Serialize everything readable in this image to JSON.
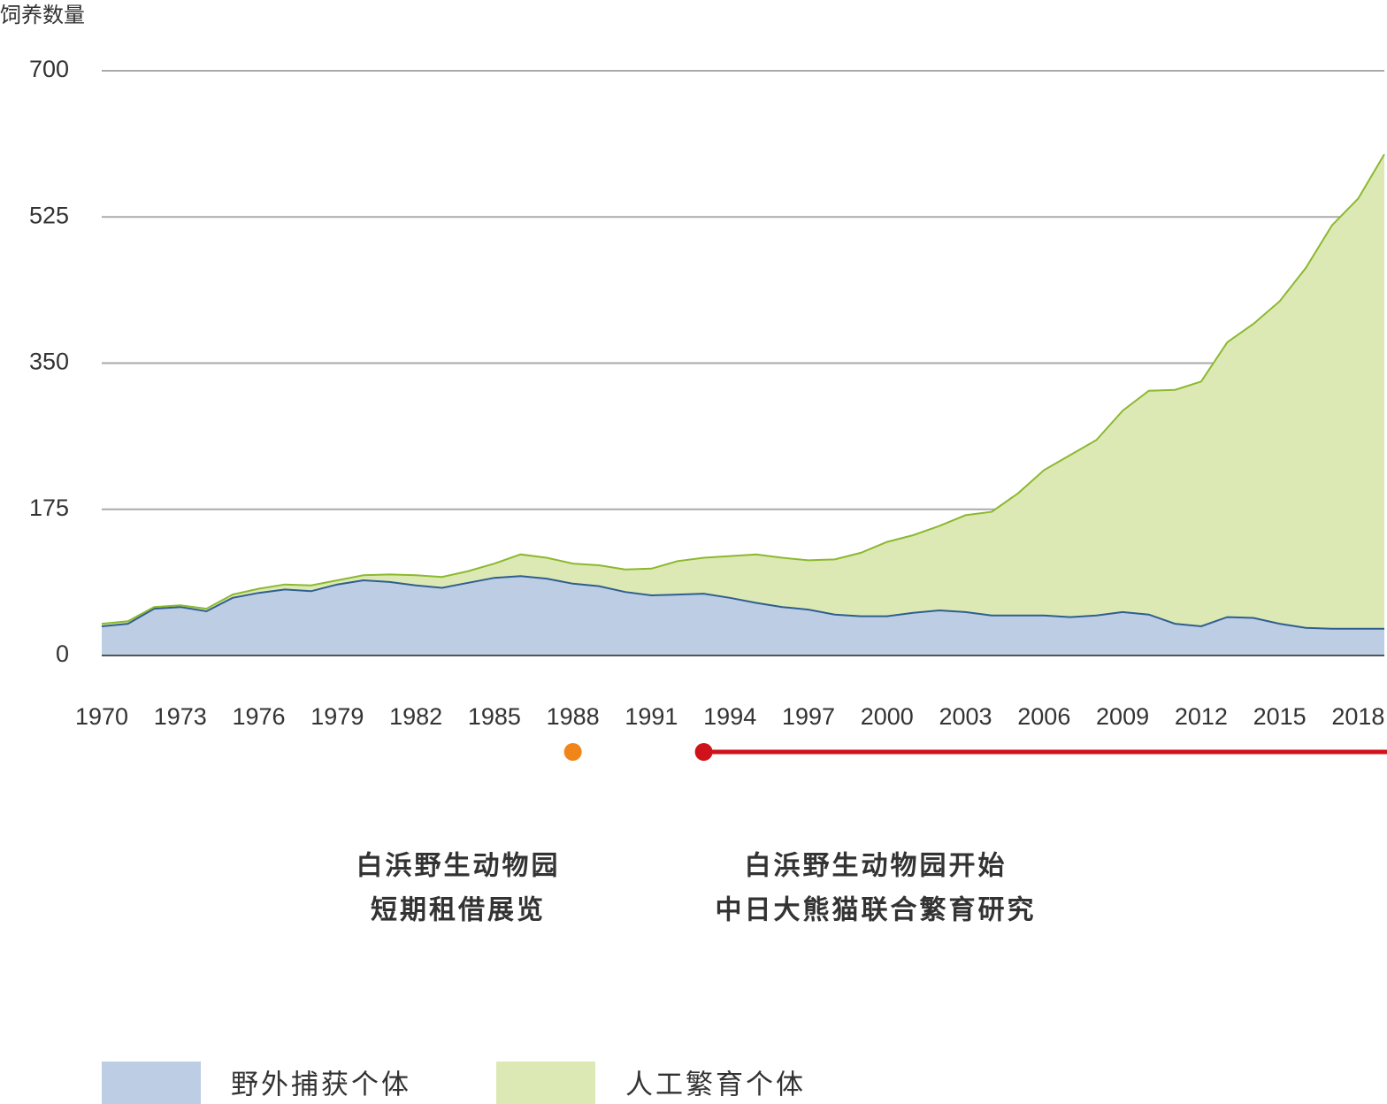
{
  "chart_data": {
    "type": "stacked-area",
    "y_label": "饲养数量",
    "x": [
      1970,
      1971,
      1972,
      1973,
      1974,
      1975,
      1976,
      1977,
      1978,
      1979,
      1980,
      1981,
      1982,
      1983,
      1984,
      1985,
      1986,
      1987,
      1988,
      1989,
      1990,
      1991,
      1992,
      1993,
      1994,
      1995,
      1996,
      1997,
      1998,
      1999,
      2000,
      2001,
      2002,
      2003,
      2004,
      2005,
      2006,
      2007,
      2008,
      2009,
      2010,
      2011,
      2012,
      2013,
      2014,
      2015,
      2016,
      2017,
      2018,
      2019
    ],
    "xlim": [
      1970,
      2019
    ],
    "xticks": [
      1970,
      1973,
      1976,
      1979,
      1982,
      1985,
      1988,
      1991,
      1994,
      1997,
      2000,
      2003,
      2006,
      2009,
      2012,
      2015,
      2018
    ],
    "ylim": [
      0,
      700
    ],
    "yticks": [
      0,
      175,
      350,
      525,
      700
    ],
    "grid": true,
    "series": [
      {
        "name": "野外捕获个体",
        "color": "#bccde4",
        "line_color": "#2f5f8f",
        "values": [
          35,
          38,
          56,
          58,
          53,
          69,
          75,
          79,
          77,
          85,
          90,
          88,
          84,
          81,
          87,
          93,
          95,
          92,
          86,
          83,
          76,
          72,
          73,
          74,
          69,
          63,
          58,
          55,
          49,
          47,
          47,
          51,
          54,
          52,
          48,
          48,
          48,
          46,
          48,
          52,
          49,
          38,
          35,
          46,
          45,
          38,
          33,
          32,
          32,
          32
        ]
      },
      {
        "name": "人工繁育个体",
        "color": "#dde9b5",
        "line_color": "#8cb82e",
        "values": [
          3,
          3,
          2,
          2,
          3,
          4,
          5,
          6,
          7,
          5,
          6,
          9,
          12,
          13,
          14,
          17,
          26,
          25,
          24,
          25,
          27,
          32,
          40,
          43,
          50,
          58,
          59,
          59,
          66,
          76,
          89,
          93,
          101,
          116,
          124,
          146,
          174,
          194,
          210,
          241,
          268,
          280,
          293,
          329,
          352,
          386,
          431,
          483,
          515,
          568
        ]
      }
    ],
    "events": [
      {
        "x": 1988,
        "color": "#f0861a",
        "label": [
          "白浜野生动物园",
          "短期租借展览"
        ]
      },
      {
        "x": 1993,
        "color": "#d0121b",
        "ongoing": true,
        "label": [
          "白浜野生动物园开始",
          "中日大熊猫联合繁育研究"
        ]
      }
    ]
  }
}
